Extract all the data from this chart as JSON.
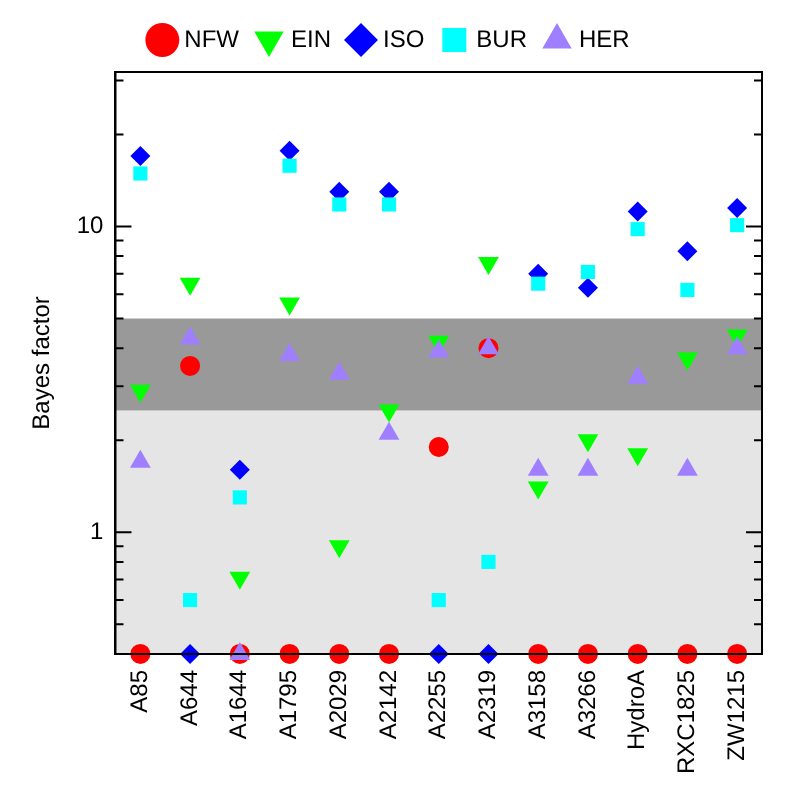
{
  "chart_data": {
    "type": "scatter",
    "ylabel": "Bayes factor",
    "log": true,
    "grid": false,
    "legend": "top",
    "categories": [
      "A85",
      "A644",
      "A1644",
      "A1795",
      "A2029",
      "A2142",
      "A2255",
      "A2319",
      "A3158",
      "A3266",
      "HydroA",
      "RXC1825",
      "ZW1215"
    ],
    "ylim": [
      0.4,
      32
    ],
    "yticks": [
      {
        "value": 0.4,
        "label": null
      },
      {
        "value": 0.5,
        "label": null
      },
      {
        "value": 0.6,
        "label": null
      },
      {
        "value": 0.7,
        "label": null
      },
      {
        "value": 0.8,
        "label": null
      },
      {
        "value": 0.9,
        "label": null
      },
      1,
      {
        "value": 2,
        "label": null
      },
      {
        "value": 3,
        "label": null
      },
      {
        "value": 4,
        "label": null
      },
      {
        "value": 5,
        "label": null
      },
      {
        "value": 6,
        "label": null
      },
      {
        "value": 7,
        "label": null
      },
      {
        "value": 8,
        "label": null
      },
      {
        "value": 9,
        "label": null
      },
      10,
      {
        "value": 20,
        "label": null
      },
      {
        "value": 30,
        "label": null
      }
    ],
    "bands": [
      {
        "axis": "y",
        "from": 0.4,
        "to": 2.5,
        "color": "#e5e5e5"
      },
      {
        "axis": "y",
        "from": 2.5,
        "to": 5,
        "color": "#999999"
      }
    ],
    "series": [
      {
        "name": "NFW",
        "color": "#ff0000",
        "marker": "circle",
        "values": [
          0.4,
          3.5,
          0.4,
          0.4,
          0.4,
          0.4,
          1.9,
          4.0,
          0.4,
          0.4,
          0.4,
          0.4,
          0.4
        ]
      },
      {
        "name": "EIN",
        "color": "#00ff00",
        "marker": "triangle-down",
        "values": [
          2.9,
          6.5,
          0.71,
          5.6,
          0.9,
          2.5,
          4.2,
          7.6,
          1.4,
          2.0,
          1.8,
          3.7,
          4.4
        ]
      },
      {
        "name": "ISO",
        "color": "#0000ff",
        "marker": "diamond",
        "values": [
          17,
          0.4,
          1.6,
          17.7,
          13,
          13,
          0.4,
          0.4,
          7.0,
          6.3,
          11.2,
          8.3,
          11.5
        ]
      },
      {
        "name": "BUR",
        "color": "#00ffff",
        "marker": "square",
        "values": [
          14.9,
          0.6,
          1.3,
          15.8,
          11.8,
          11.8,
          0.6,
          0.8,
          6.5,
          7.1,
          9.8,
          6.2,
          10.1
        ]
      },
      {
        "name": "HER",
        "color": "#9f7fff",
        "marker": "triangle",
        "values": [
          1.7,
          4.3,
          0.4,
          3.8,
          3.3,
          2.1,
          3.9,
          4.0,
          1.6,
          1.6,
          3.2,
          1.6,
          4.0
        ]
      }
    ]
  }
}
